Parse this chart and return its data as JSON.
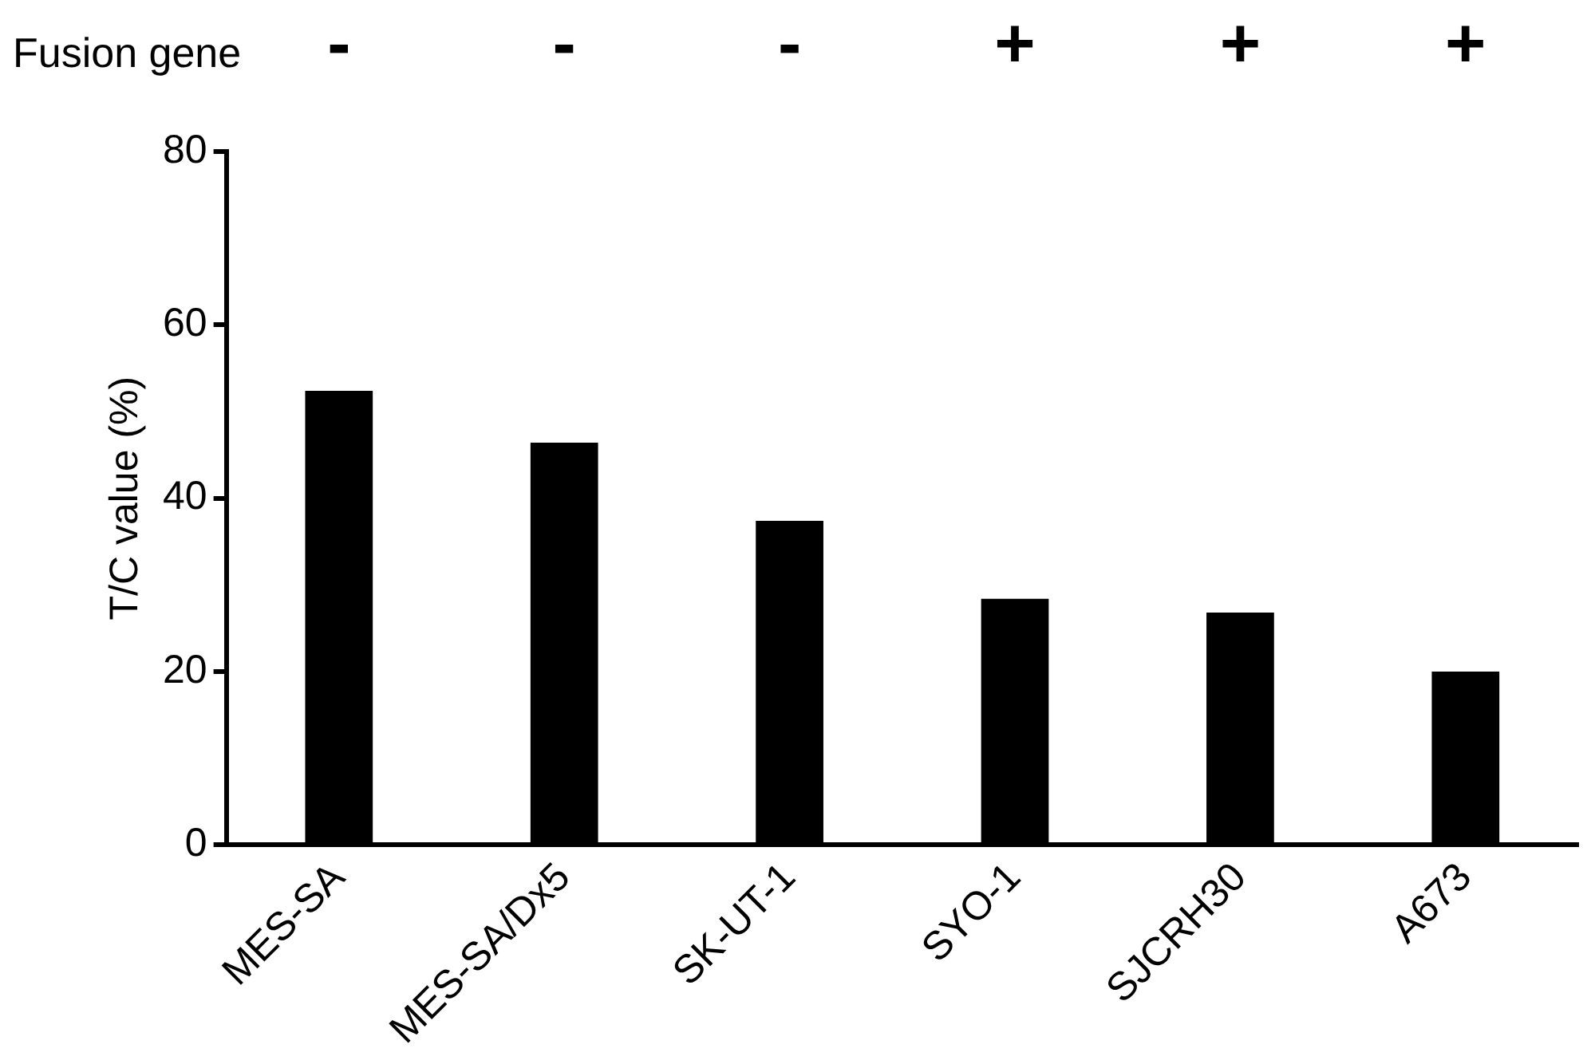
{
  "chart_data": {
    "type": "bar",
    "ylabel": "T/C value (%)",
    "categories": [
      "MES-SA",
      "MES-SA/Dx5",
      "SK-UT-1",
      "SYO-1",
      "SJCRH30",
      "A673"
    ],
    "values": [
      52.4,
      46.4,
      37.4,
      28.4,
      26.8,
      20.0
    ],
    "color": "#000000",
    "ylim": [
      0,
      80
    ],
    "yticks": [
      0,
      20,
      40,
      60,
      80
    ],
    "grid": false,
    "legend": false,
    "annotations": [
      "Fusion gene",
      "-",
      "-",
      "-",
      "+",
      "+",
      "+"
    ]
  }
}
